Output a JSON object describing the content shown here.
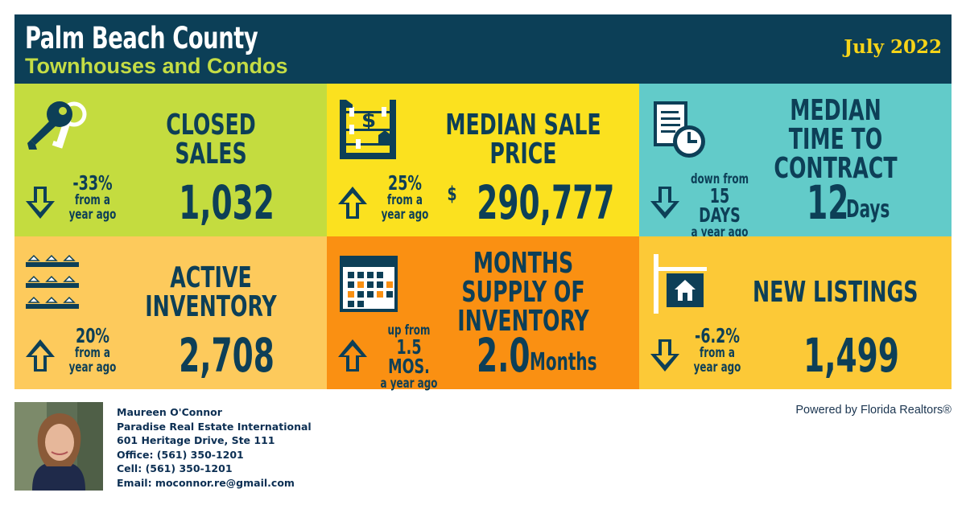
{
  "header": {
    "title": "Palm Beach County",
    "subtitle": "Townhouses and Condos",
    "date": "July 2022"
  },
  "tiles": [
    {
      "label": "CLOSED SALES",
      "direction": "down",
      "change_big": "-33%",
      "change_small1": "from a",
      "change_small2": "year ago",
      "value": "1,032",
      "icon": "keys-icon",
      "color": "#c4dc3f"
    },
    {
      "label": "MEDIAN SALE PRICE",
      "direction": "up",
      "change_big": "25%",
      "change_small1": "from a",
      "change_small2": "year ago",
      "currency": "$",
      "value": "290,777",
      "icon": "abacus-icon",
      "color": "#fbe11f"
    },
    {
      "label": "MEDIAN TIME TO CONTRACT",
      "direction": "down",
      "change_pre": "down from",
      "change_mid": "15 DAYS",
      "change_post": "a year ago",
      "value": "12",
      "unit": "Days",
      "icon": "document-clock-icon",
      "color": "#62cbc9"
    },
    {
      "label": "ACTIVE INVENTORY",
      "direction": "up",
      "change_big": "20%",
      "change_small1": "from a",
      "change_small2": "year ago",
      "value": "2,708",
      "icon": "houses-rows-icon",
      "color": "#fdca5c"
    },
    {
      "label": "MONTHS SUPPLY OF INVENTORY",
      "direction": "up",
      "change_pre": "up from",
      "change_mid": "1.5 MOS.",
      "change_post": "a year ago",
      "value": "2.0",
      "unit": "Months",
      "icon": "calendar-icon",
      "color": "#fa9012"
    },
    {
      "label": "NEW LISTINGS",
      "direction": "down",
      "change_big": "-6.2%",
      "change_small1": "from a",
      "change_small2": "year ago",
      "value": "1,499",
      "icon": "house-sign-icon",
      "color": "#fcc937"
    }
  ],
  "agent": {
    "name": "Maureen O'Connor",
    "company": "Paradise Real Estate International",
    "address": "601 Heritage Drive, Ste 111",
    "office": "Office: (561) 350-1201",
    "cell": "Cell: (561) 350-1201",
    "email": "Email: moconnor.re@gmail.com"
  },
  "powered_by": "Powered by Florida Realtors®"
}
